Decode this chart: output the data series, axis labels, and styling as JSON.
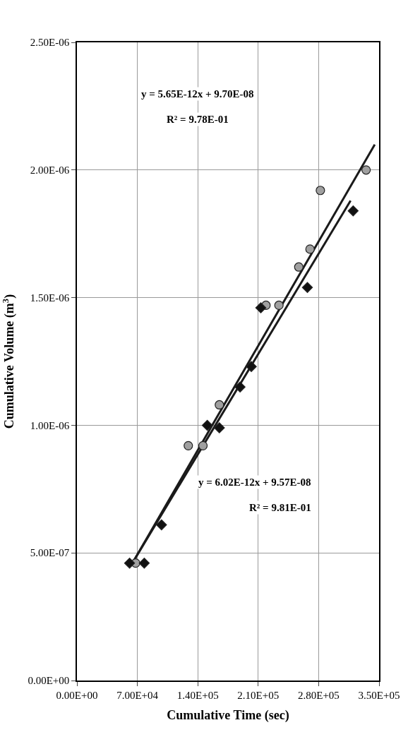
{
  "chart_data": {
    "type": "scatter",
    "xlabel": "Cumulative Time (sec)",
    "ylabel": "Cumulative Volume (m$^{3}$)",
    "xlim": [
      0,
      350000
    ],
    "ylim": [
      0,
      2.5e-06
    ],
    "xticks": [
      {
        "value": 0,
        "label": "0.00E+00"
      },
      {
        "value": 70000,
        "label": "7.00E+04"
      },
      {
        "value": 140000,
        "label": "1.40E+05"
      },
      {
        "value": 210000,
        "label": "2.10E+05"
      },
      {
        "value": 280000,
        "label": "2.80E+05"
      },
      {
        "value": 350000,
        "label": "3.50E+05"
      }
    ],
    "yticks": [
      {
        "value": 0,
        "label": "0.00E+00"
      },
      {
        "value": 5e-07,
        "label": "5.00E-07"
      },
      {
        "value": 1e-06,
        "label": "1.00E-06"
      },
      {
        "value": 1.5e-06,
        "label": "1.50E-06"
      },
      {
        "value": 2e-06,
        "label": "2.00E-06"
      },
      {
        "value": 2.5e-06,
        "label": "2.50E-06"
      }
    ],
    "grid": true,
    "series": [
      {
        "marker": "circle",
        "color": "#a0a0a0",
        "x": [
          335000,
          282000,
          270000,
          257000,
          234000,
          219000,
          165000,
          146000,
          129000,
          68000
        ],
        "values": [
          2e-06,
          1.92e-06,
          1.69e-06,
          1.62e-06,
          1.47e-06,
          1.47e-06,
          1.08e-06,
          9.2e-07,
          9.2e-07,
          4.6e-07
        ]
      },
      {
        "marker": "diamond",
        "color": "#111111",
        "x": [
          320000,
          267000,
          213000,
          202000,
          189000,
          165000,
          151000,
          98000,
          78000,
          61000
        ],
        "values": [
          1.84e-06,
          1.54e-06,
          1.46e-06,
          1.23e-06,
          1.15e-06,
          9.9e-07,
          1e-06,
          6.1e-07,
          4.6e-07,
          4.6e-07
        ]
      },
      {
        "type": "line",
        "color": "#1a1a1a",
        "x": [
          66000,
          345000
        ],
        "values": [
          4.7e-07,
          2.1e-06
        ]
      },
      {
        "type": "line",
        "color": "#1a1a1a",
        "x": [
          66000,
          317000
        ],
        "values": [
          4.7e-07,
          1.88e-06
        ]
      }
    ],
    "annotations": [
      "y = 5.65E-12x + 9.70E-08",
      "R² = 9.78E-01",
      "y = 6.02E-12x + 9.57E-08",
      "R² = 9.81E-01"
    ]
  }
}
